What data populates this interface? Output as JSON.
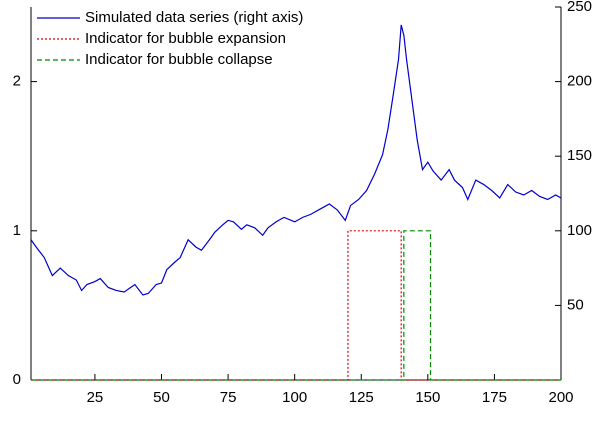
{
  "chart_data": {
    "type": "line",
    "xlim": [
      1,
      200
    ],
    "xticks": [
      25,
      50,
      75,
      100,
      125,
      150,
      175,
      200
    ],
    "ylim": [
      0,
      2.5
    ],
    "yticks": [
      0,
      1,
      2
    ],
    "y2lim": [
      0,
      250
    ],
    "y2ticks": [
      50,
      100,
      150,
      200,
      250
    ],
    "legend": "upper left",
    "series": [
      {
        "name": "Simulated data series (right axis)",
        "color": "#0000cc",
        "dash": "solid",
        "axis": "y2",
        "x": [
          1,
          3,
          6,
          9,
          12,
          15,
          18,
          20,
          22,
          25,
          27,
          30,
          33,
          36,
          40,
          43,
          45,
          48,
          50,
          52,
          55,
          57,
          60,
          63,
          65,
          68,
          70,
          73,
          75,
          77,
          80,
          82,
          85,
          88,
          90,
          93,
          96,
          100,
          103,
          106,
          110,
          113,
          116,
          119,
          121,
          124,
          127,
          130,
          133,
          135,
          137,
          139,
          140,
          141,
          142,
          144,
          146,
          148,
          150,
          152,
          155,
          158,
          160,
          163,
          165,
          168,
          171,
          174,
          177,
          180,
          183,
          186,
          189,
          192,
          195,
          198,
          200
        ],
        "values": [
          94,
          89,
          82,
          70,
          75,
          70,
          67,
          60,
          64,
          66,
          68,
          62,
          60,
          59,
          64,
          57,
          58,
          64,
          65,
          74,
          79,
          82,
          94,
          89,
          87,
          94,
          99,
          104,
          107,
          106,
          101,
          104,
          102,
          97,
          102,
          106,
          109,
          106,
          109,
          111,
          115,
          118,
          114,
          107,
          117,
          121,
          127,
          138,
          151,
          168,
          191,
          215,
          238,
          231,
          215,
          188,
          161,
          141,
          146,
          140,
          134,
          141,
          134,
          129,
          121,
          134,
          131,
          127,
          122,
          131,
          126,
          124,
          127,
          123,
          121,
          124,
          122
        ]
      },
      {
        "name": "Indicator for bubble expansion",
        "color": "#dd0000",
        "dash": "dotted",
        "axis": "y",
        "x": [
          1,
          120,
          120,
          140,
          140,
          200
        ],
        "values": [
          0,
          0,
          1,
          1,
          0,
          0
        ]
      },
      {
        "name": "Indicator for bubble collapse",
        "color": "#008800",
        "dash": "dashed",
        "axis": "y",
        "x": [
          1,
          141,
          141,
          151,
          151,
          200
        ],
        "values": [
          0,
          0,
          1,
          1,
          0,
          0
        ]
      }
    ]
  }
}
